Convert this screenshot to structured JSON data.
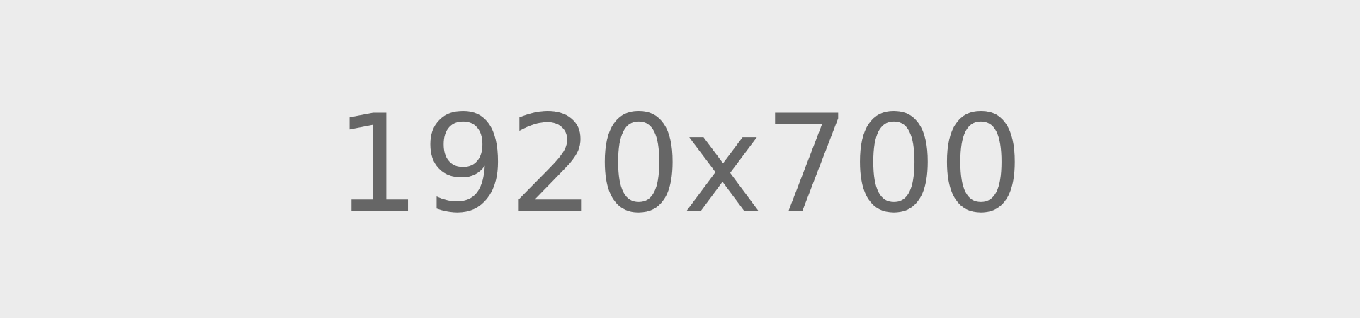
{
  "placeholder": {
    "label": "1920x700",
    "text_color": "#666666",
    "background_color": "#ececec"
  }
}
